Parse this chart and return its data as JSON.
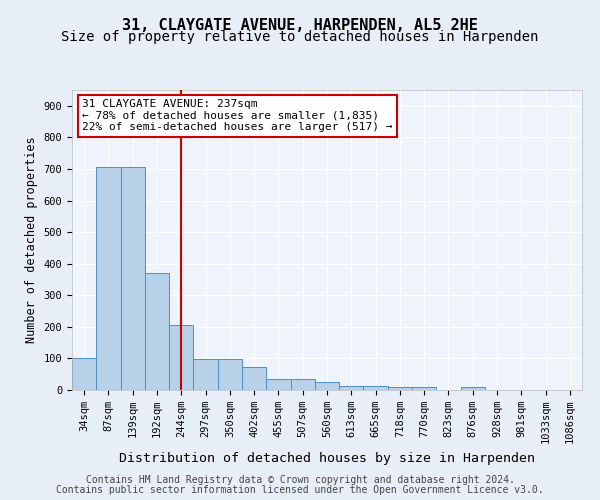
{
  "title1": "31, CLAYGATE AVENUE, HARPENDEN, AL5 2HE",
  "title2": "Size of property relative to detached houses in Harpenden",
  "xlabel": "Distribution of detached houses by size in Harpenden",
  "ylabel": "Number of detached properties",
  "categories": [
    "34sqm",
    "87sqm",
    "139sqm",
    "192sqm",
    "244sqm",
    "297sqm",
    "350sqm",
    "402sqm",
    "455sqm",
    "507sqm",
    "560sqm",
    "613sqm",
    "665sqm",
    "718sqm",
    "770sqm",
    "823sqm",
    "876sqm",
    "928sqm",
    "981sqm",
    "1033sqm",
    "1086sqm"
  ],
  "values": [
    100,
    707,
    707,
    372,
    205,
    97,
    97,
    72,
    35,
    35,
    25,
    13,
    13,
    10,
    10,
    0,
    10,
    0,
    0,
    0,
    0
  ],
  "bar_color": "#b8d0e8",
  "bar_edge_color": "#4a90c4",
  "red_line_index": 4,
  "annotation_line1": "31 CLAYGATE AVENUE: 237sqm",
  "annotation_line2": "← 78% of detached houses are smaller (1,835)",
  "annotation_line3": "22% of semi-detached houses are larger (517) →",
  "annotation_box_color": "#ffffff",
  "annotation_edge_color": "#cc0000",
  "vline_color": "#cc0000",
  "ylim": [
    0,
    950
  ],
  "yticks": [
    0,
    100,
    200,
    300,
    400,
    500,
    600,
    700,
    800,
    900
  ],
  "footer1": "Contains HM Land Registry data © Crown copyright and database right 2024.",
  "footer2": "Contains public sector information licensed under the Open Government Licence v3.0.",
  "bg_color": "#e8eef8",
  "plot_bg_color": "#eef3fc",
  "grid_color": "#ffffff",
  "title1_fontsize": 11,
  "title2_fontsize": 10,
  "xlabel_fontsize": 9.5,
  "ylabel_fontsize": 8.5,
  "tick_fontsize": 7.5,
  "footer_fontsize": 7,
  "annotation_fontsize": 8
}
